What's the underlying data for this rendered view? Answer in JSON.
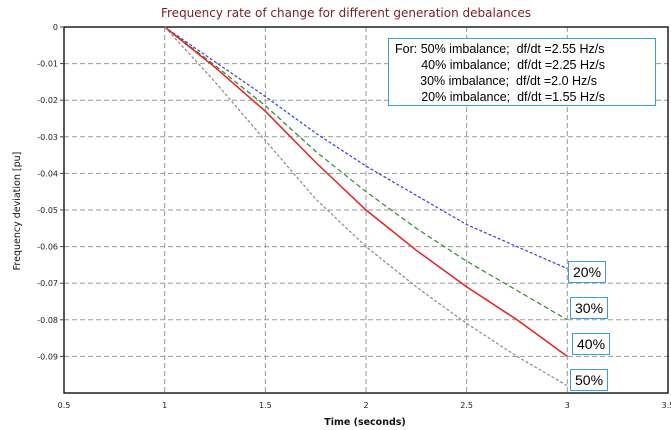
{
  "chart_data": {
    "type": "line",
    "title": "Frequency rate of change for different generation debalances",
    "xlabel": "Time (seconds)",
    "ylabel": "Frequency deviation [pu]",
    "xlim": [
      0.5,
      3.5
    ],
    "ylim": [
      -0.1,
      0
    ],
    "xticks": [
      "0.5",
      "1",
      "1.5",
      "2",
      "2.5",
      "3",
      "3.5"
    ],
    "yticks": [
      "0",
      "-0.01",
      "-0.02",
      "-0.03",
      "-0.04",
      "-0.05",
      "-0.06",
      "-0.07",
      "-0.08",
      "-0.09"
    ],
    "grid": true,
    "series": [
      {
        "name": "20%",
        "color": "#3b3bdc",
        "dash": "3,2",
        "x": [
          1,
          1.25,
          1.5,
          1.75,
          2,
          2.25,
          2.5,
          2.75,
          3
        ],
        "y": [
          0,
          -0.0095,
          -0.019,
          -0.029,
          -0.038,
          -0.046,
          -0.054,
          -0.06,
          -0.066
        ]
      },
      {
        "name": "30%",
        "color": "#2e8b2e",
        "dash": "5,3",
        "x": [
          1,
          1.25,
          1.5,
          1.75,
          2,
          2.25,
          2.5,
          2.75,
          3
        ],
        "y": [
          0,
          -0.0105,
          -0.0215,
          -0.034,
          -0.045,
          -0.055,
          -0.064,
          -0.072,
          -0.08
        ]
      },
      {
        "name": "40%",
        "color": "#e82020",
        "dash": "",
        "x": [
          1,
          1.25,
          1.5,
          1.75,
          2,
          2.25,
          2.5,
          2.75,
          3
        ],
        "y": [
          0,
          -0.011,
          -0.023,
          -0.037,
          -0.05,
          -0.061,
          -0.071,
          -0.08,
          -0.09
        ]
      },
      {
        "name": "50%",
        "color": "#8a8a8a",
        "dash": "3,2",
        "x": [
          1,
          1.25,
          1.5,
          1.75,
          2,
          2.25,
          2.5,
          2.75,
          3
        ],
        "y": [
          0,
          -0.015,
          -0.031,
          -0.047,
          -0.06,
          -0.071,
          -0.081,
          -0.09,
          -0.098
        ]
      }
    ],
    "annotation": {
      "lines": [
        "For: 50% imbalance;  df/dt =2.55 Hz/s",
        "40% imbalance;  df/dt =2.25 Hz/s",
        "30% imbalance;  df/dt =2.0 Hz/s",
        "20% imbalance;  df/dt =1.55 Hz/s"
      ]
    },
    "end_labels": [
      "20%",
      "30%",
      "40%",
      "50%"
    ]
  }
}
